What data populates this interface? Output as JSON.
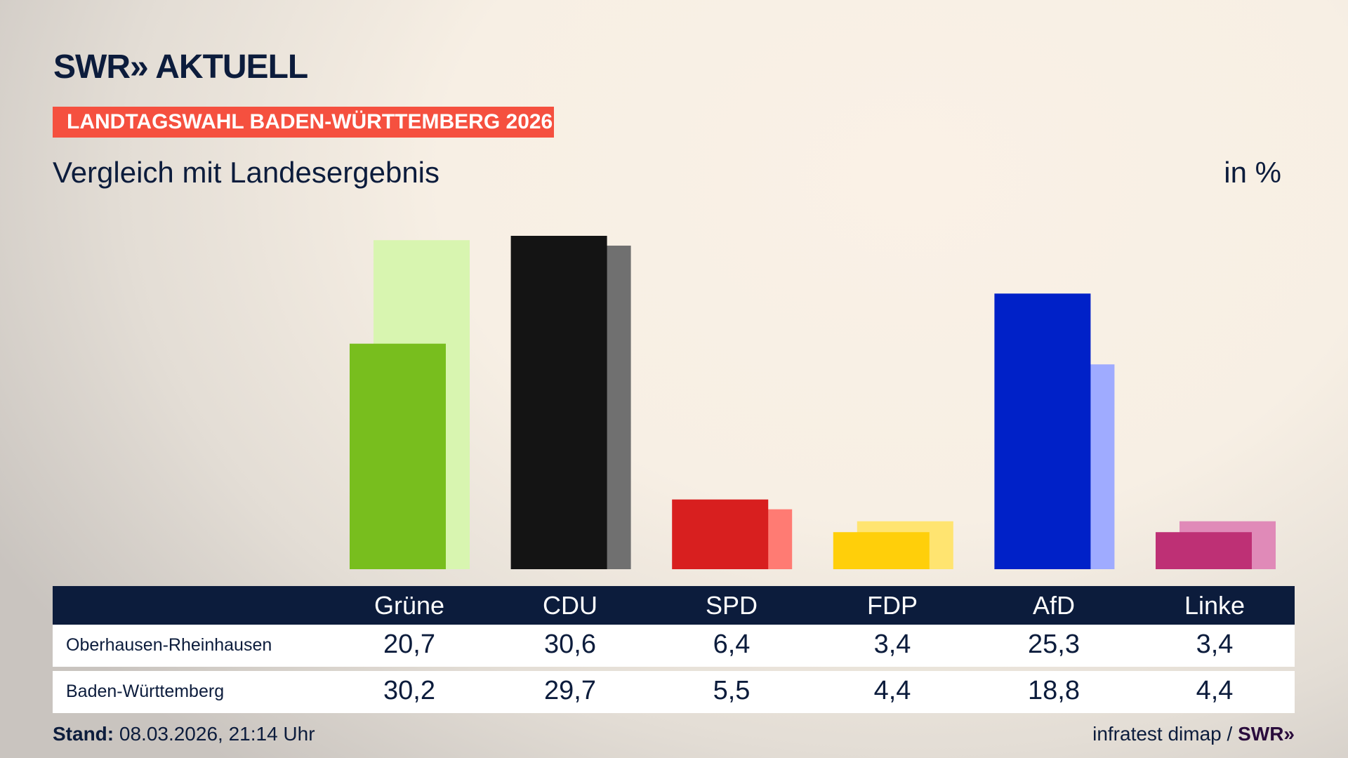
{
  "header": {
    "logo": "SWR» AKTUELL",
    "banner": "LANDTAGSWAHL BADEN-WÜRTTEMBERG 2026",
    "subtitle": "Vergleich mit Landesergebnis",
    "unit": "in %"
  },
  "chart_data": {
    "type": "bar",
    "categories": [
      "Grüne",
      "CDU",
      "SPD",
      "FDP",
      "AfD",
      "Linke"
    ],
    "series": [
      {
        "name": "Oberhausen-Rheinhausen",
        "values": [
          20.7,
          30.6,
          6.4,
          3.4,
          25.3,
          3.4
        ]
      },
      {
        "name": "Baden-Württemberg",
        "values": [
          30.2,
          29.7,
          5.5,
          4.4,
          18.8,
          4.4
        ]
      }
    ],
    "colors": {
      "primary": [
        "#78be1e",
        "#141414",
        "#d81f1f",
        "#ffcf0a",
        "#0021c8",
        "#be3075"
      ],
      "secondary": [
        "#d8f5b0",
        "#707070",
        "#ff7b73",
        "#ffe470",
        "#9fabff",
        "#e08ab8"
      ]
    },
    "ylim": [
      0,
      31
    ],
    "grid": false
  },
  "table": {
    "headers": [
      "Grüne",
      "CDU",
      "SPD",
      "FDP",
      "AfD",
      "Linke"
    ],
    "rows": [
      {
        "label": "Oberhausen-Rheinhausen",
        "values": [
          "20,7",
          "30,6",
          "6,4",
          "3,4",
          "25,3",
          "3,4"
        ]
      },
      {
        "label": "Baden-Württemberg",
        "values": [
          "30,2",
          "29,7",
          "5,5",
          "4,4",
          "18,8",
          "4,4"
        ]
      }
    ]
  },
  "footer": {
    "stand_label": "Stand:",
    "stand_value": " 08.03.2026, 21:14 Uhr",
    "source": "infratest dimap / ",
    "source_logo": "SWR»"
  },
  "colors": {
    "navy": "#0c1c3c",
    "banner": "#f5503f"
  }
}
